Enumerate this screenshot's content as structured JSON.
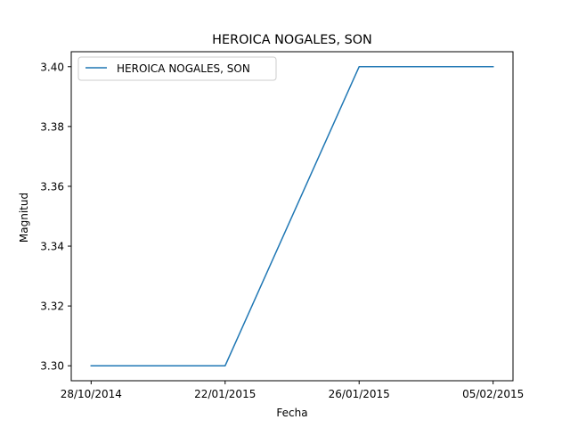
{
  "chart_data": {
    "type": "line",
    "title": "HEROICA NOGALES, SON",
    "xlabel": "Fecha",
    "ylabel": "Magnitud",
    "categories": [
      "28/10/2014",
      "22/01/2015",
      "26/01/2015",
      "05/02/2015"
    ],
    "series": [
      {
        "name": "HEROICA NOGALES, SON",
        "values": [
          3.3,
          3.3,
          3.4,
          3.4
        ],
        "color": "#1f77b4"
      }
    ],
    "yticks": [
      "3.30",
      "3.32",
      "3.34",
      "3.36",
      "3.38",
      "3.40"
    ],
    "ylim": [
      3.295,
      3.405
    ],
    "grid": false,
    "legend_position": "upper-left"
  }
}
